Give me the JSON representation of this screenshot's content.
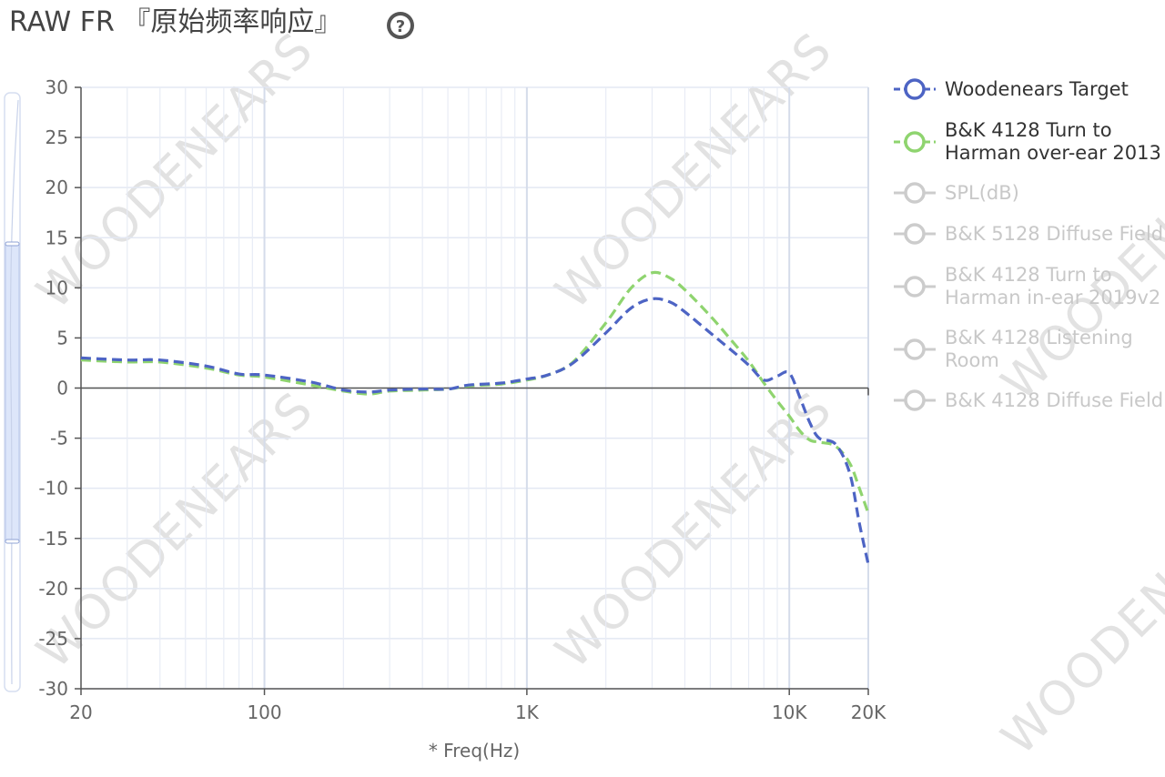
{
  "page": {
    "title": "RAW FR 『原始频率响应』",
    "help_icon": "question-circle-icon",
    "watermark": "WOODENEARS"
  },
  "legend": [
    {
      "label": [
        "Woodenears Target"
      ],
      "active": true,
      "color": "#4d64c4",
      "icon": "circle-line-icon"
    },
    {
      "label": [
        "B&K 4128 Turn to",
        "Harman over-ear 2013"
      ],
      "active": true,
      "color": "#8fd46f",
      "icon": "circle-line-icon"
    },
    {
      "label": [
        "SPL(dB)"
      ],
      "active": false,
      "color": "#cccccc",
      "icon": "circle-line-icon"
    },
    {
      "label": [
        "B&K 5128 Diffuse Field"
      ],
      "active": false,
      "color": "#cccccc",
      "icon": "circle-line-icon"
    },
    {
      "label": [
        "B&K 4128 Turn to",
        "Harman in-ear 2019v2"
      ],
      "active": false,
      "color": "#cccccc",
      "icon": "circle-line-icon"
    },
    {
      "label": [
        "B&K 4128 Listening",
        "Room"
      ],
      "active": false,
      "color": "#cccccc",
      "icon": "circle-line-icon"
    },
    {
      "label": [
        "B&K 4128 Diffuse Field"
      ],
      "active": false,
      "color": "#cccccc",
      "icon": "circle-line-icon"
    }
  ],
  "chart_data": {
    "type": "line",
    "xlabel": "* Freq(Hz)",
    "ylabel": "",
    "xscale": "log",
    "xlim": [
      20,
      20000
    ],
    "ylim": [
      -30,
      30
    ],
    "yticks": [
      30,
      25,
      20,
      15,
      10,
      5,
      0,
      -5,
      -10,
      -15,
      -20,
      -25,
      -30
    ],
    "xticks": [
      {
        "value": 20,
        "label": "20"
      },
      {
        "value": 100,
        "label": "100"
      },
      {
        "value": 1000,
        "label": "1K"
      },
      {
        "value": 10000,
        "label": "10K"
      },
      {
        "value": 20000,
        "label": "20K"
      }
    ],
    "grid": true,
    "legend_position": "right",
    "zoom_slider": {
      "range_db": [
        -15,
        15
      ]
    },
    "series": [
      {
        "name": "Woodenears Target",
        "color": "#4d64c4",
        "style": "dashed",
        "points": [
          [
            20,
            3.0
          ],
          [
            30,
            2.8
          ],
          [
            40,
            2.8
          ],
          [
            60,
            2.2
          ],
          [
            80,
            1.4
          ],
          [
            100,
            1.3
          ],
          [
            150,
            0.6
          ],
          [
            200,
            -0.2
          ],
          [
            250,
            -0.4
          ],
          [
            300,
            -0.2
          ],
          [
            400,
            -0.1
          ],
          [
            500,
            -0.1
          ],
          [
            600,
            0.3
          ],
          [
            800,
            0.5
          ],
          [
            1000,
            0.9
          ],
          [
            1200,
            1.3
          ],
          [
            1500,
            2.5
          ],
          [
            2000,
            5.5
          ],
          [
            2500,
            8.0
          ],
          [
            3000,
            8.9
          ],
          [
            3500,
            8.6
          ],
          [
            4000,
            7.6
          ],
          [
            5000,
            5.5
          ],
          [
            6000,
            3.8
          ],
          [
            7000,
            2.3
          ],
          [
            8000,
            0.8
          ],
          [
            9000,
            1.2
          ],
          [
            10000,
            1.5
          ],
          [
            11000,
            -1.0
          ],
          [
            12000,
            -3.5
          ],
          [
            13000,
            -5.0
          ],
          [
            15000,
            -5.6
          ],
          [
            17000,
            -8.5
          ],
          [
            18500,
            -13.5
          ],
          [
            20000,
            -17.6
          ]
        ]
      },
      {
        "name": "B&K 4128 Turn to Harman over-ear 2013",
        "color": "#8fd46f",
        "style": "dashed",
        "points": [
          [
            20,
            2.8
          ],
          [
            30,
            2.6
          ],
          [
            40,
            2.6
          ],
          [
            60,
            2.0
          ],
          [
            80,
            1.3
          ],
          [
            100,
            1.1
          ],
          [
            150,
            0.3
          ],
          [
            200,
            -0.3
          ],
          [
            250,
            -0.6
          ],
          [
            300,
            -0.3
          ],
          [
            400,
            -0.2
          ],
          [
            500,
            -0.1
          ],
          [
            600,
            0.2
          ],
          [
            800,
            0.4
          ],
          [
            1000,
            0.8
          ],
          [
            1200,
            1.3
          ],
          [
            1500,
            2.6
          ],
          [
            2000,
            6.5
          ],
          [
            2500,
            10.0
          ],
          [
            3000,
            11.5
          ],
          [
            3500,
            11.0
          ],
          [
            4000,
            9.8
          ],
          [
            5000,
            7.2
          ],
          [
            6000,
            4.8
          ],
          [
            7000,
            2.7
          ],
          [
            8000,
            0.5
          ],
          [
            9000,
            -1.3
          ],
          [
            10000,
            -2.8
          ],
          [
            11000,
            -4.3
          ],
          [
            12000,
            -5.2
          ],
          [
            13000,
            -5.4
          ],
          [
            15000,
            -5.8
          ],
          [
            17000,
            -7.5
          ],
          [
            18500,
            -10.0
          ],
          [
            20000,
            -12.5
          ]
        ]
      }
    ]
  }
}
